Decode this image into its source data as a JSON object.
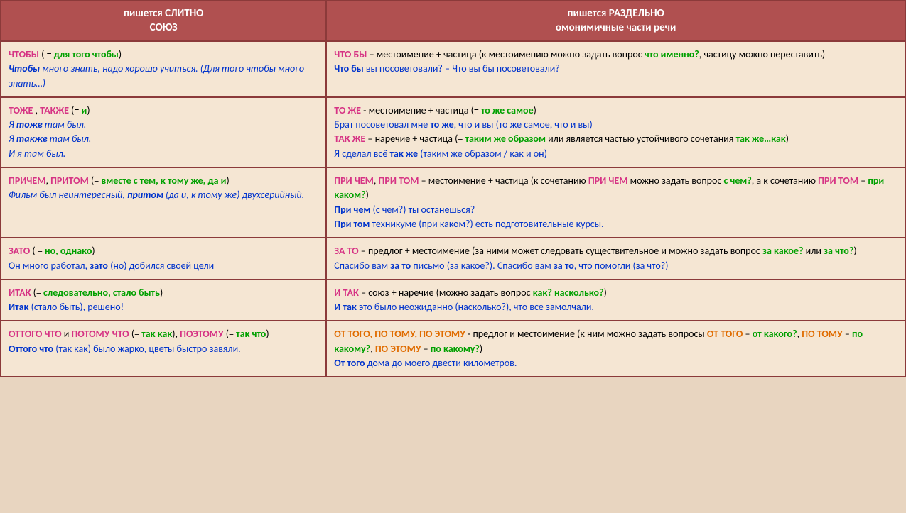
{
  "colors": {
    "header_bg": "#b05050",
    "header_text": "#ffffff",
    "cell_bg": "#f5e6d3",
    "border": "#8b3a3a",
    "magenta": "#d63384",
    "green": "#00a000",
    "blue": "#0033cc",
    "orange": "#e06c00",
    "red": "#cc0000",
    "black": "#000000"
  },
  "headers": {
    "left_line1": "пишется СЛИТНО",
    "left_line2": "СОЮЗ",
    "right_line1": "пишется РАЗДЕЛЬНО",
    "right_line2": "омонимичные части речи"
  },
  "rows": [
    {
      "left": [
        {
          "t": "ЧТОБЫ",
          "c": "magenta",
          "b": true
        },
        {
          "t": " ( = ",
          "c": "black"
        },
        {
          "t": "для того чтобы",
          "c": "green",
          "b": true
        },
        {
          "t": ")",
          "c": "black"
        },
        {
          "br": true
        },
        {
          "t": "Чтобы",
          "c": "blue",
          "b": true,
          "i": true
        },
        {
          "t": " много знать, надо хорошо учиться. (Для того чтобы много знать…)",
          "c": "blue",
          "i": true
        }
      ],
      "right": [
        {
          "t": "ЧТО БЫ",
          "c": "magenta",
          "b": true
        },
        {
          "t": " – местоимение + частица (к местоимению можно задать вопрос ",
          "c": "black"
        },
        {
          "t": "что именно?",
          "c": "green",
          "b": true
        },
        {
          "t": ", частицу можно переставить)",
          "c": "black"
        },
        {
          "br": true
        },
        {
          "t": "Что бы",
          "c": "blue",
          "b": true
        },
        {
          "t": " вы посоветовали? – Что вы бы посоветовали?",
          "c": "blue"
        }
      ]
    },
    {
      "left": [
        {
          "t": "ТОЖЕ",
          "c": "magenta",
          "b": true
        },
        {
          "t": " , ",
          "c": "black"
        },
        {
          "t": "ТАКЖЕ",
          "c": "magenta",
          "b": true
        },
        {
          "t": " (= ",
          "c": "black"
        },
        {
          "t": "и",
          "c": "green",
          "b": true
        },
        {
          "t": ")",
          "c": "black"
        },
        {
          "br": true
        },
        {
          "t": "Я ",
          "c": "blue",
          "i": true
        },
        {
          "t": "тоже",
          "c": "blue",
          "b": true,
          "i": true
        },
        {
          "t": " там был.",
          "c": "blue",
          "i": true
        },
        {
          "br": true
        },
        {
          "t": "Я ",
          "c": "blue",
          "i": true
        },
        {
          "t": "также",
          "c": "blue",
          "b": true,
          "i": true
        },
        {
          "t": " там был.",
          "c": "blue",
          "i": true
        },
        {
          "br": true
        },
        {
          "t": "И я там был.",
          "c": "blue",
          "i": true
        }
      ],
      "right": [
        {
          "t": "ТО ЖЕ",
          "c": "magenta",
          "b": true
        },
        {
          "t": " -  местоимение + частица (= ",
          "c": "black"
        },
        {
          "t": "то же самое",
          "c": "green",
          "b": true
        },
        {
          "t": ")",
          "c": "black"
        },
        {
          "br": true
        },
        {
          "t": "Брат посоветовал мне ",
          "c": "blue"
        },
        {
          "t": "то же",
          "c": "blue",
          "b": true
        },
        {
          "t": ", что и вы (то же самое, что и вы)",
          "c": "blue"
        },
        {
          "br": true
        },
        {
          "t": "ТАК ЖЕ",
          "c": "magenta",
          "b": true
        },
        {
          "t": " – наречие + частица (= ",
          "c": "black"
        },
        {
          "t": "таким же образом",
          "c": "green",
          "b": true
        },
        {
          "t": " или является частью устойчивого сочетания ",
          "c": "black"
        },
        {
          "t": "так же…как",
          "c": "green",
          "b": true
        },
        {
          "t": ")",
          "c": "black"
        },
        {
          "br": true
        },
        {
          "t": "Я сделал всё ",
          "c": "blue"
        },
        {
          "t": "так же",
          "c": "blue",
          "b": true
        },
        {
          "t": " (таким же образом / как и он)",
          "c": "blue"
        }
      ]
    },
    {
      "left": [
        {
          "t": "ПРИЧЕМ",
          "c": "magenta",
          "b": true
        },
        {
          "t": ", ",
          "c": "black"
        },
        {
          "t": "ПРИТОМ",
          "c": "magenta",
          "b": true
        },
        {
          "t": " (= ",
          "c": "black"
        },
        {
          "t": "вместе с тем, к тому же, да и",
          "c": "green",
          "b": true
        },
        {
          "t": ")",
          "c": "black"
        },
        {
          "br": true
        },
        {
          "t": "Фильм был неинтересный, ",
          "c": "blue",
          "i": true
        },
        {
          "t": "притом",
          "c": "blue",
          "b": true,
          "i": true
        },
        {
          "t": " (да и, к тому же) двухсерийный.",
          "c": "blue",
          "i": true
        }
      ],
      "right": [
        {
          "t": "ПРИ ЧЕМ",
          "c": "magenta",
          "b": true
        },
        {
          "t": ", ",
          "c": "black"
        },
        {
          "t": "ПРИ ТОМ",
          "c": "magenta",
          "b": true
        },
        {
          "t": " – местоимение + частица (к сочетанию ",
          "c": "black"
        },
        {
          "t": "ПРИ ЧЕМ",
          "c": "magenta",
          "b": true
        },
        {
          "t": " можно задать вопрос ",
          "c": "black"
        },
        {
          "t": "с чем?",
          "c": "green",
          "b": true
        },
        {
          "t": ", а к сочетанию ",
          "c": "black"
        },
        {
          "t": "ПРИ ТОМ",
          "c": "magenta",
          "b": true
        },
        {
          "t": " – ",
          "c": "black"
        },
        {
          "t": "при каком?",
          "c": "green",
          "b": true
        },
        {
          "t": ")",
          "c": "black"
        },
        {
          "br": true
        },
        {
          "t": "При чем",
          "c": "blue",
          "b": true
        },
        {
          "t": " (с чем?) ты останешься?",
          "c": "blue"
        },
        {
          "br": true
        },
        {
          "t": "При том",
          "c": "blue",
          "b": true
        },
        {
          "t": " техникуме (при каком?) есть подготовительные курсы.",
          "c": "blue"
        }
      ]
    },
    {
      "left": [
        {
          "t": "ЗАТО",
          "c": "magenta",
          "b": true
        },
        {
          "t": " ( = ",
          "c": "black"
        },
        {
          "t": "но, однако",
          "c": "green",
          "b": true
        },
        {
          "t": ")",
          "c": "black"
        },
        {
          "br": true
        },
        {
          "t": "Он много работал, ",
          "c": "blue"
        },
        {
          "t": "зато",
          "c": "blue",
          "b": true
        },
        {
          "t": " (но) добился своей цели",
          "c": "blue"
        }
      ],
      "right": [
        {
          "t": "ЗА ТО",
          "c": "magenta",
          "b": true
        },
        {
          "t": " – предлог + местоимение (за ними может следовать существительное и можно задать вопрос ",
          "c": "black"
        },
        {
          "t": "за какое?",
          "c": "green",
          "b": true
        },
        {
          "t": " или ",
          "c": "black"
        },
        {
          "t": "за что?",
          "c": "green",
          "b": true
        },
        {
          "t": ")",
          "c": "black"
        },
        {
          "br": true
        },
        {
          "t": "Спасибо вам ",
          "c": "blue"
        },
        {
          "t": "за то",
          "c": "blue",
          "b": true
        },
        {
          "t": " письмо (за какое?). Спасибо вам ",
          "c": "blue"
        },
        {
          "t": "за то",
          "c": "blue",
          "b": true
        },
        {
          "t": ", что помогли (за что?)",
          "c": "blue"
        }
      ]
    },
    {
      "left": [
        {
          "t": "ИТАК",
          "c": "magenta",
          "b": true
        },
        {
          "t": " (= ",
          "c": "black"
        },
        {
          "t": "следовательно, стало быть",
          "c": "green",
          "b": true
        },
        {
          "t": ")",
          "c": "black"
        },
        {
          "br": true
        },
        {
          "t": "Итак",
          "c": "blue",
          "b": true
        },
        {
          "t": " (стало быть), решено!",
          "c": "blue"
        }
      ],
      "right": [
        {
          "t": "И ТАК",
          "c": "magenta",
          "b": true
        },
        {
          "t": " – союз + наречие (можно задать вопрос ",
          "c": "black"
        },
        {
          "t": "как? насколько?",
          "c": "green",
          "b": true
        },
        {
          "t": ")",
          "c": "black"
        },
        {
          "br": true
        },
        {
          "t": "И так",
          "c": "blue",
          "b": true
        },
        {
          "t": " это было неожиданно (насколько?), что все замолчали.",
          "c": "blue"
        }
      ]
    },
    {
      "left": [
        {
          "t": "ОТТОГО ЧТО",
          "c": "magenta",
          "b": true
        },
        {
          "t": " и ",
          "c": "black"
        },
        {
          "t": "ПОТОМУ ЧТО",
          "c": "magenta",
          "b": true
        },
        {
          "t": " (= ",
          "c": "black"
        },
        {
          "t": "так как",
          "c": "green",
          "b": true
        },
        {
          "t": "), ",
          "c": "black"
        },
        {
          "t": "ПОЭТОМУ",
          "c": "magenta",
          "b": true
        },
        {
          "t": " (= ",
          "c": "black"
        },
        {
          "t": "так что",
          "c": "green",
          "b": true
        },
        {
          "t": ")",
          "c": "black"
        },
        {
          "br": true
        },
        {
          "t": "Оттого что",
          "c": "blue",
          "b": true
        },
        {
          "t": " (так как) было жарко, цветы быстро завяли.",
          "c": "blue"
        }
      ],
      "right": [
        {
          "t": "ОТ ТОГО, ПО ТОМУ, ПО ЭТОМУ",
          "c": "orange",
          "b": true
        },
        {
          "t": " -  предлог и местоимение (к ним можно задать вопросы ",
          "c": "black"
        },
        {
          "t": "ОТ ТОГО",
          "c": "orange",
          "b": true
        },
        {
          "t": " – ",
          "c": "black"
        },
        {
          "t": "от какого?",
          "c": "green",
          "b": true
        },
        {
          "t": ", ",
          "c": "black"
        },
        {
          "t": "ПО ТОМУ",
          "c": "orange",
          "b": true
        },
        {
          "t": " – ",
          "c": "black"
        },
        {
          "t": "по какому?",
          "c": "green",
          "b": true
        },
        {
          "t": ", ",
          "c": "black"
        },
        {
          "t": "ПО ЭТОМУ",
          "c": "orange",
          "b": true
        },
        {
          "t": " – ",
          "c": "black"
        },
        {
          "t": "по какому?",
          "c": "green",
          "b": true
        },
        {
          "t": ")",
          "c": "black"
        },
        {
          "br": true
        },
        {
          "t": "От того",
          "c": "blue",
          "b": true
        },
        {
          "t": " дома до моего двести километров.",
          "c": "blue"
        }
      ]
    }
  ]
}
